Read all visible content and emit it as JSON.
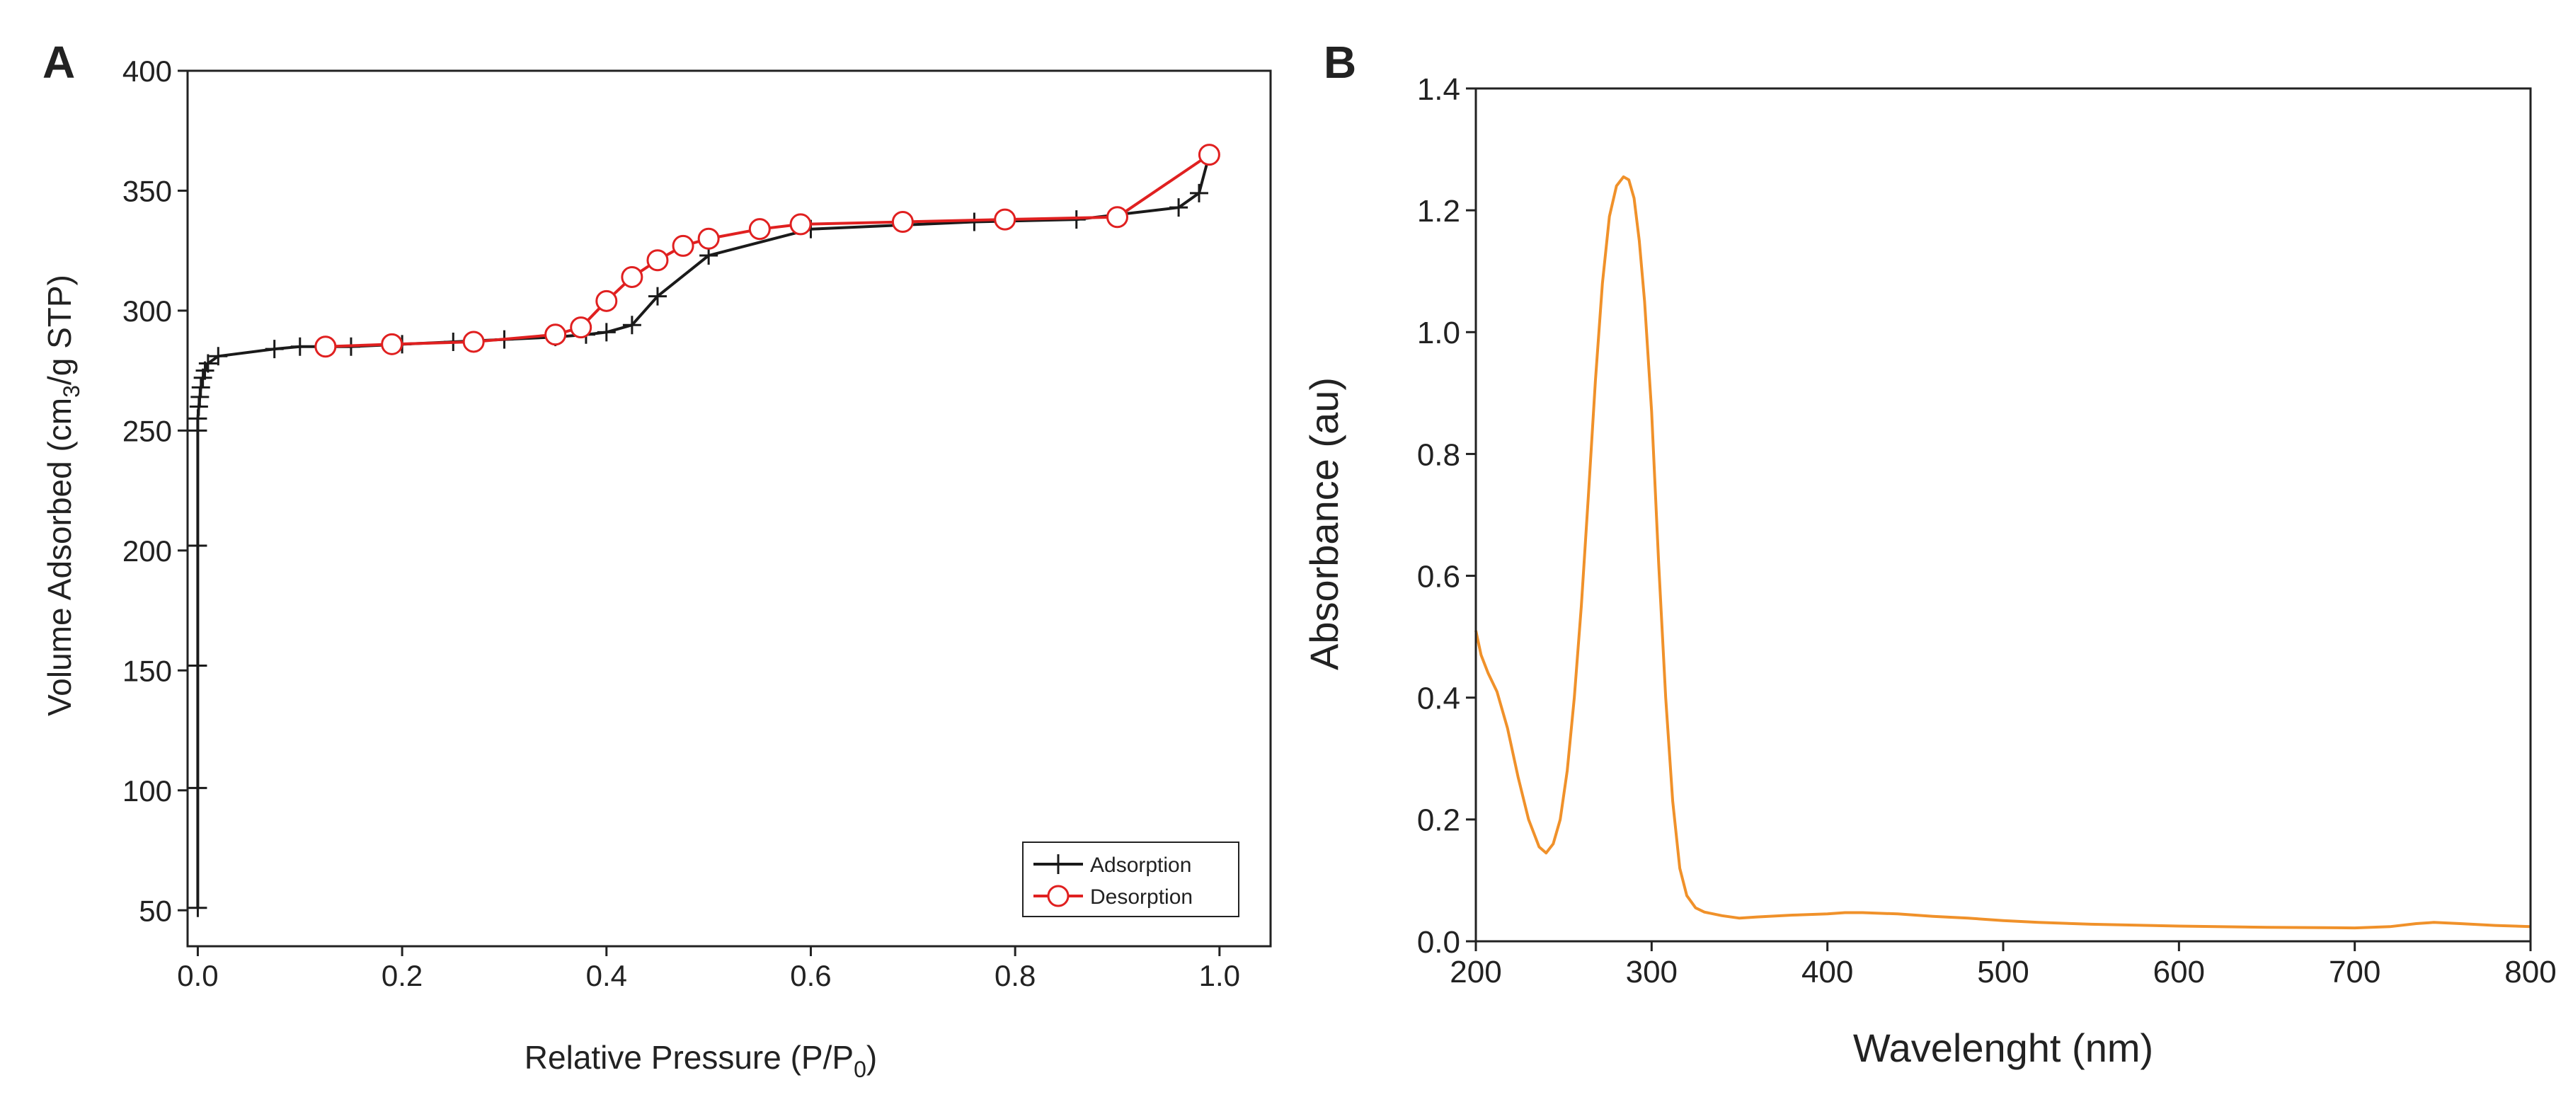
{
  "colors": {
    "adsorption": "#1a1a1a",
    "desorption": "#e02020",
    "absorbance": "#f0912a",
    "axis": "#222222"
  },
  "chart_data": [
    {
      "panel": "A",
      "type": "line",
      "title": "",
      "xlabel": "Relative Pressure (P/P",
      "xlabel_sub": "0",
      "xlabel_end": ")",
      "ylabel": "Volume Adsorbed (cm",
      "ylabel_sub": "3",
      "ylabel_end": "/g STP)",
      "xlim": [
        -0.01,
        1.05
      ],
      "ylim": [
        35,
        400
      ],
      "xticks": [
        0.0,
        0.2,
        0.4,
        0.6,
        0.8,
        1.0
      ],
      "xtick_labels": [
        "0.0",
        "0.2",
        "0.4",
        "0.6",
        "0.8",
        "1.0"
      ],
      "yticks": [
        50,
        100,
        150,
        200,
        250,
        300,
        350,
        400
      ],
      "ytick_labels": [
        "50",
        "100",
        "150",
        "200",
        "250",
        "300",
        "350",
        "400"
      ],
      "legend_position": "bottom-right",
      "series": [
        {
          "name": "Adsorption",
          "marker": "plus",
          "color": "#1a1a1a",
          "x": [
            0.0,
            0.0,
            0.0,
            0.0,
            0.0,
            0.0,
            0.001,
            0.002,
            0.003,
            0.005,
            0.007,
            0.01,
            0.02,
            0.075,
            0.1,
            0.15,
            0.2,
            0.25,
            0.3,
            0.35,
            0.38,
            0.4,
            0.425,
            0.45,
            0.5,
            0.6,
            0.76,
            0.86,
            0.96,
            0.98,
            0.99
          ],
          "y": [
            51,
            101,
            152,
            202,
            250,
            255,
            260,
            264,
            268,
            272,
            275,
            278,
            281,
            284,
            285,
            285,
            286,
            287,
            288,
            289,
            290,
            291,
            294,
            306,
            323,
            334,
            337,
            338,
            343,
            349,
            365
          ]
        },
        {
          "name": "Desorption",
          "marker": "circle",
          "color": "#e02020",
          "x": [
            0.99,
            0.9,
            0.79,
            0.69,
            0.59,
            0.55,
            0.5,
            0.475,
            0.45,
            0.425,
            0.4,
            0.375,
            0.35,
            0.27,
            0.19,
            0.125
          ],
          "y": [
            365,
            339,
            338,
            337,
            336,
            334,
            330,
            327,
            321,
            314,
            304,
            293,
            290,
            287,
            286,
            285
          ]
        }
      ]
    },
    {
      "panel": "B",
      "type": "line",
      "title": "",
      "xlabel": "Wavelenght (nm)",
      "ylabel": "Absorbance (au)",
      "xlim": [
        200,
        800
      ],
      "ylim": [
        0,
        1.4
      ],
      "xticks": [
        200,
        300,
        400,
        500,
        600,
        700,
        800
      ],
      "xtick_labels": [
        "200",
        "300",
        "400",
        "500",
        "600",
        "700",
        "800"
      ],
      "yticks": [
        0.0,
        0.2,
        0.4,
        0.6,
        0.8,
        1.0,
        1.2,
        1.4
      ],
      "ytick_labels": [
        "0.0",
        "0.2",
        "0.4",
        "0.6",
        "0.8",
        "1.0",
        "1.2",
        "1.4"
      ],
      "series": [
        {
          "name": "Absorbance",
          "color": "#f0912a",
          "x": [
            200,
            203,
            207,
            212,
            218,
            224,
            230,
            236,
            240,
            244,
            248,
            252,
            256,
            260,
            264,
            268,
            272,
            276,
            280,
            284,
            287,
            290,
            293,
            296,
            300,
            304,
            308,
            312,
            316,
            320,
            325,
            330,
            340,
            350,
            360,
            380,
            400,
            410,
            420,
            440,
            460,
            480,
            500,
            520,
            550,
            600,
            650,
            700,
            720,
            735,
            745,
            760,
            780,
            800
          ],
          "y": [
            0.51,
            0.47,
            0.44,
            0.41,
            0.35,
            0.27,
            0.2,
            0.155,
            0.145,
            0.16,
            0.2,
            0.28,
            0.4,
            0.55,
            0.73,
            0.92,
            1.08,
            1.19,
            1.24,
            1.255,
            1.25,
            1.22,
            1.15,
            1.05,
            0.87,
            0.62,
            0.4,
            0.23,
            0.12,
            0.075,
            0.055,
            0.048,
            0.042,
            0.038,
            0.04,
            0.043,
            0.045,
            0.047,
            0.047,
            0.045,
            0.041,
            0.038,
            0.034,
            0.031,
            0.028,
            0.025,
            0.023,
            0.022,
            0.024,
            0.029,
            0.031,
            0.029,
            0.026,
            0.024
          ]
        }
      ]
    }
  ]
}
